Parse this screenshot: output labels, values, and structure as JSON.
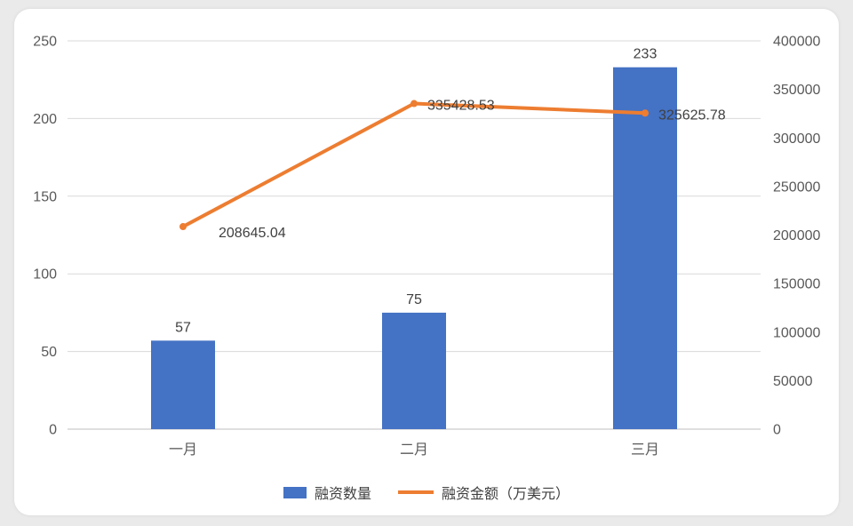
{
  "chart_data": {
    "type": "combo-bar-line",
    "categories": [
      "一月",
      "二月",
      "三月"
    ],
    "series": [
      {
        "name": "融资数量",
        "type": "bar",
        "axis": "left",
        "color": "#4472c4",
        "values": [
          57,
          75,
          233
        ],
        "data_labels": [
          "57",
          "75",
          "233"
        ]
      },
      {
        "name": "融资金额（万美元）",
        "type": "line",
        "axis": "right",
        "color": "#ed7d31",
        "values": [
          208645.04,
          335428.53,
          325625.78
        ],
        "data_labels": [
          "208645.04",
          "335428.53",
          "325625.78"
        ]
      }
    ],
    "left_axis": {
      "min": 0,
      "max": 250,
      "step": 50,
      "tick_labels": [
        "0",
        "50",
        "100",
        "150",
        "200",
        "250"
      ]
    },
    "right_axis": {
      "min": 0,
      "max": 400000,
      "step": 50000,
      "tick_labels": [
        "0",
        "50000",
        "100000",
        "150000",
        "200000",
        "250000",
        "300000",
        "350000",
        "400000"
      ]
    },
    "grid": true,
    "legend_position": "bottom",
    "colors": {
      "bar": "#4472c4",
      "line": "#ed7d31",
      "grid": "#d9d9d9",
      "axis_line": "#bfbfbf",
      "tick_text": "#595959",
      "label_text": "#404040",
      "card_bg": "#ffffff",
      "page_bg": "#eaeaea"
    }
  }
}
